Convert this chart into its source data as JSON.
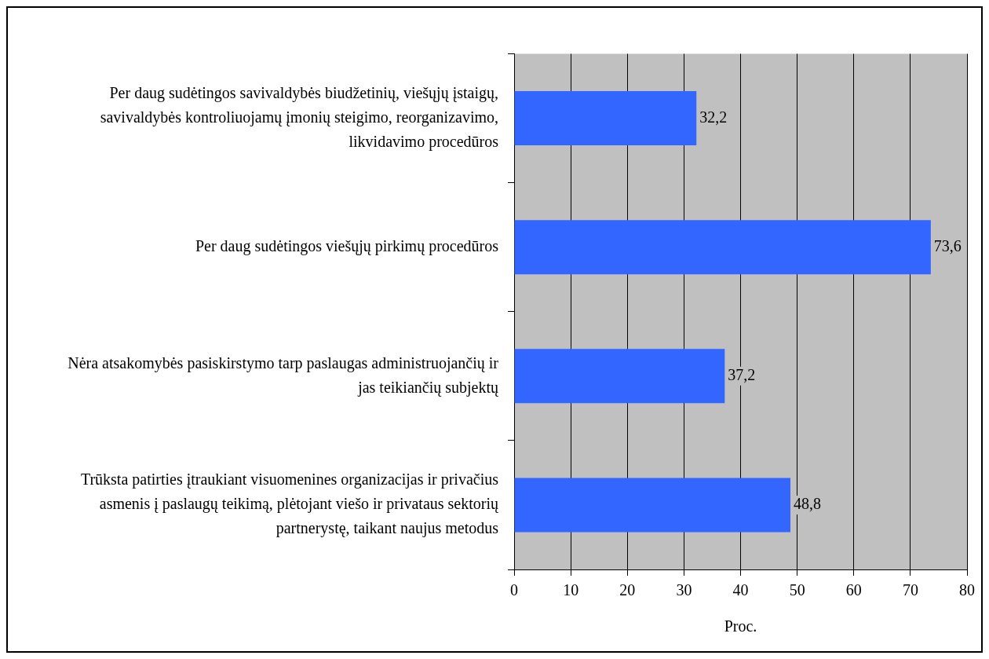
{
  "chart_data": {
    "type": "bar",
    "orientation": "horizontal",
    "xlabel": "Proc.",
    "categories": [
      "Per daug sudėtingos savivaldybės biudžetinių, viešųjų įstaigų, savivaldybės kontroliuojamų įmonių steigimo, reorganizavimo, likvidavimo procedūros",
      "Per daug sudėtingos viešųjų pirkimų procedūros",
      "Nėra atsakomybės pasiskirstymo tarp paslaugas administruojančių ir jas teikiančių subjektų",
      "Trūksta patirties įtraukiant visuomenines organizacijas ir privačius asmenis į paslaugų teikimą, plėtojant viešo ir privataus sektorių partnerystę, taikant naujus metodus"
    ],
    "values": [
      32.2,
      73.6,
      37.2,
      48.8
    ],
    "value_labels": [
      "32,2",
      "73,6",
      "37,2",
      "48,8"
    ],
    "color": "#3366ff",
    "xlim": [
      0,
      80
    ],
    "xticks": [
      0,
      10,
      20,
      30,
      40,
      50,
      60,
      70,
      80
    ],
    "grid": "x",
    "legend": false
  }
}
